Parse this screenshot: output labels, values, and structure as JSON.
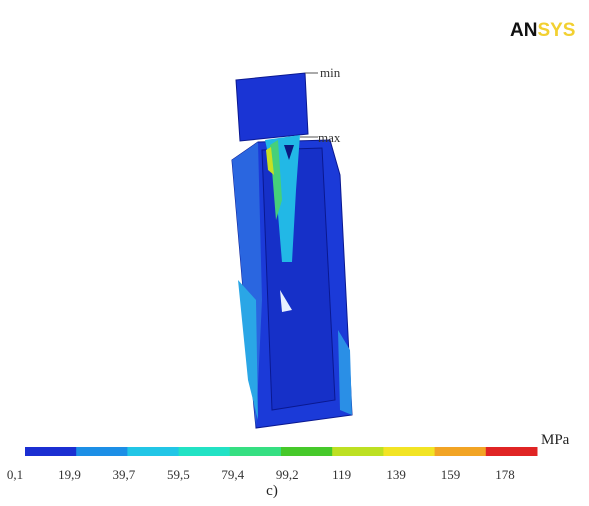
{
  "logo": {
    "dark": "AN",
    "light": "SYS"
  },
  "labels": {
    "min": "min",
    "max": "max"
  },
  "legend": {
    "unit": "MPa",
    "colors": [
      "#1b2fd2",
      "#1c8fe6",
      "#22c6e6",
      "#22e2c4",
      "#35df82",
      "#46c92a",
      "#bde022",
      "#f2e424",
      "#f2a424",
      "#e02424"
    ],
    "labels": [
      "0,1",
      "19,9",
      "39,7",
      "59,5",
      "79,4",
      "99,2",
      "119",
      "139",
      "159",
      "178"
    ]
  },
  "caption": "c)"
}
